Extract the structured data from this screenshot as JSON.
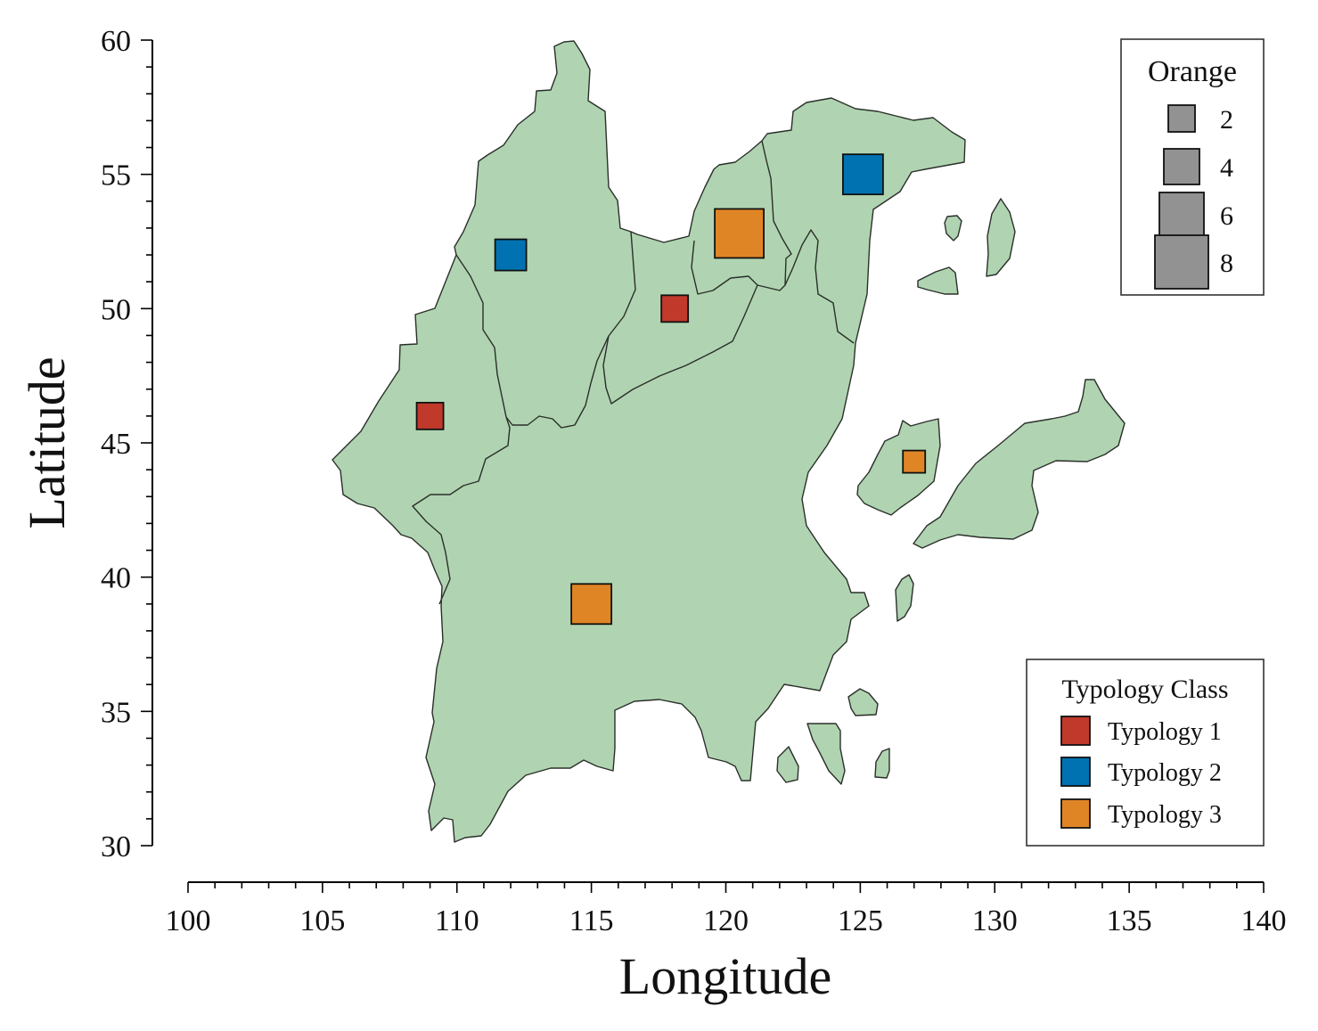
{
  "chart_data": {
    "type": "map",
    "xlabel": "Longitude",
    "ylabel": "Latitude",
    "xlim": [
      100,
      140
    ],
    "ylim": [
      30,
      60
    ],
    "x_ticks": [
      100,
      105,
      110,
      115,
      120,
      125,
      130,
      135,
      140
    ],
    "y_ticks": [
      30,
      35,
      40,
      45,
      50,
      55,
      60
    ],
    "points": [
      {
        "lon": 109.0,
        "lat": 46.0,
        "value": 2,
        "typology": "Typology 1"
      },
      {
        "lon": 112.0,
        "lat": 52.0,
        "value": 3,
        "typology": "Typology 2"
      },
      {
        "lon": 118.1,
        "lat": 50.0,
        "value": 2,
        "typology": "Typology 1"
      },
      {
        "lon": 120.5,
        "lat": 52.8,
        "value": 7,
        "typology": "Typology 3"
      },
      {
        "lon": 125.1,
        "lat": 55.0,
        "value": 5,
        "typology": "Typology 2"
      },
      {
        "lon": 127.0,
        "lat": 44.3,
        "value": 1,
        "typology": "Typology 3"
      },
      {
        "lon": 115.0,
        "lat": 39.0,
        "value": 5,
        "typology": "Typology 3"
      }
    ],
    "size_legend": {
      "title": "Orange",
      "placement": "top-right",
      "entries": [
        2,
        4,
        6,
        8
      ]
    },
    "color_legend": {
      "title": "Typology Class",
      "placement": "bottom-right",
      "entries": [
        {
          "label": "Typology 1",
          "color": "#c0392b"
        },
        {
          "label": "Typology 2",
          "color": "#0072b2"
        },
        {
          "label": "Typology 3",
          "color": "#e08526"
        }
      ]
    },
    "land_color": "#b0d4b1",
    "size_legend_color": "#929292"
  }
}
